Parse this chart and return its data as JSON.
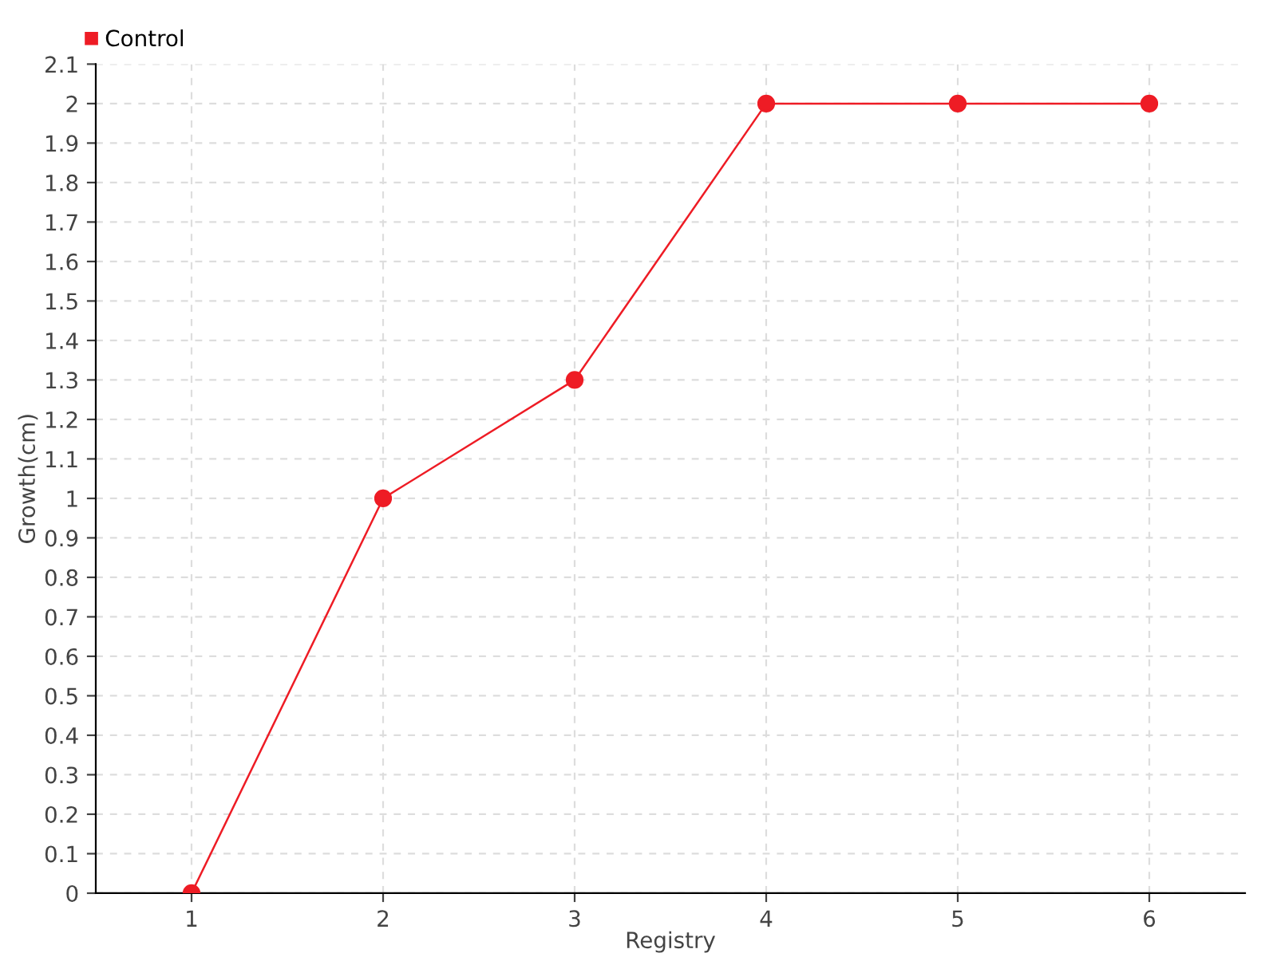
{
  "chart_data": {
    "type": "line",
    "xlabel": "Registry",
    "ylabel": "Growth(cm)",
    "x": [
      1,
      2,
      3,
      4,
      5,
      6
    ],
    "series": [
      {
        "name": "Control",
        "color": "#ee1c25",
        "values": [
          0,
          1,
          1.3,
          2,
          2,
          2
        ]
      }
    ],
    "xlim": [
      0.5,
      6.5
    ],
    "xticks": [
      1,
      2,
      3,
      4,
      5,
      6
    ],
    "ylim": [
      0,
      2.1
    ],
    "yticks": [
      0,
      0.1,
      0.2,
      0.3,
      0.4,
      0.5,
      0.6,
      0.7,
      0.8,
      0.9,
      1,
      1.1,
      1.2,
      1.3,
      1.4,
      1.5,
      1.6,
      1.7,
      1.8,
      1.9,
      2,
      2.1
    ],
    "grid": true,
    "legend": "top left",
    "marker": "circle",
    "line_style": "solid"
  }
}
